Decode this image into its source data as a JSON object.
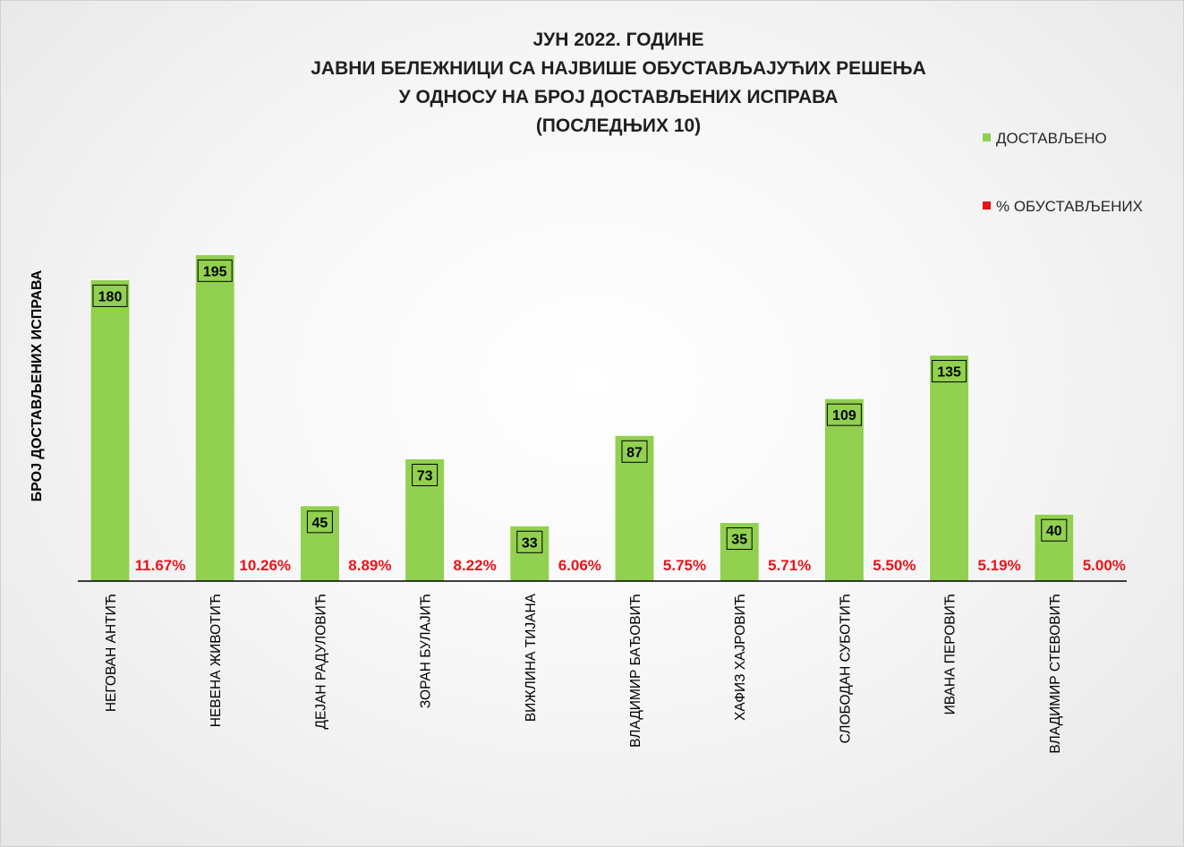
{
  "chart_data": {
    "type": "bar",
    "title_lines": [
      "ЈУН 2022. ГОДИНЕ",
      "ЈАВНИ БЕЛЕЖНИЦИ СА НАЈВИШЕ ОБУСТАВЉАЈУЋИХ РЕШЕЊА",
      "У ОДНОСУ НА БРОЈ ДОСТАВЉЕНИХ ИСПРАВА",
      "(ПОСЛЕДЊИХ 10)"
    ],
    "ylabel": "БРОЈ ДОСТАВЉЕНИХ ИСПРАВА",
    "xlabel": "",
    "categories": [
      "НЕГОВАН АНТИЋ",
      "НЕВЕНА ЖИВОТИЋ",
      "ДЕЈАН РАДУЛОВИЋ",
      "ЗОРАН БУЛАЈИЋ",
      "ВИЖЛИНА ТИЈАНА",
      "ВЛАДИМИР БАЂОВИЋ",
      "ХАФИЗ ХАЈРОВИЋ",
      "СЛОБОДАН СУБОТИЋ",
      "ИВАНА ПЕРОВИЋ",
      "ВЛАДИМИР СТЕВОВИЋ"
    ],
    "series": [
      {
        "name": "ДОСТАВЉЕНО",
        "color": "#92d050",
        "values": [
          180,
          195,
          45,
          73,
          33,
          87,
          35,
          109,
          135,
          40
        ],
        "labels": [
          "180",
          "195",
          "45",
          "73",
          "33",
          "87",
          "35",
          "109",
          "135",
          "40"
        ]
      },
      {
        "name": "% ОБУСТАВЉЕНИХ",
        "color": "#e8141b",
        "values": [
          11.67,
          10.26,
          8.89,
          8.22,
          6.06,
          5.75,
          5.71,
          5.5,
          5.19,
          5.0
        ],
        "labels": [
          "11.67%",
          "10.26%",
          "8.89%",
          "8.22%",
          "6.06%",
          "5.75%",
          "5.71%",
          "5.50%",
          "5.19%",
          "5.00%"
        ]
      }
    ],
    "ylim": [
      0,
      200
    ],
    "grid": false,
    "legend_position": "top-right"
  }
}
